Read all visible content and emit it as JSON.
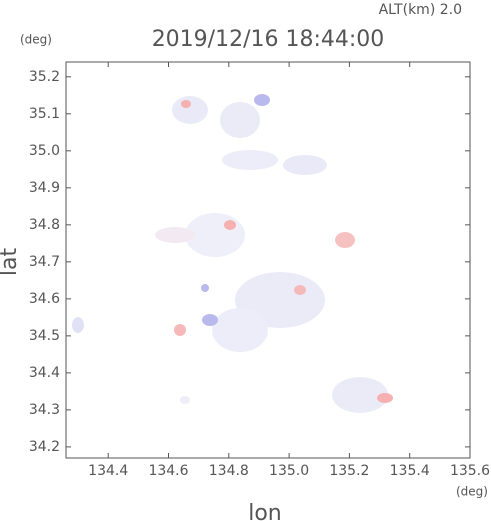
{
  "chart_data": {
    "type": "radar-map",
    "altitude_label": "ALT(km) 2.0",
    "title": "2019/12/16 18:44:00",
    "y_unit": "(deg)",
    "x_unit": "(deg)",
    "xlabel": "lon",
    "ylabel": "lat",
    "xlim": [
      134.26,
      135.6
    ],
    "ylim": [
      34.17,
      35.24
    ],
    "xticks": [
      134.4,
      134.6,
      134.8,
      {
        "value": 135.0,
        "label": "135.0"
      },
      135.2,
      135.4,
      135.6
    ],
    "yticks": [
      34.2,
      34.3,
      34.4,
      34.5,
      34.6,
      34.7,
      34.8,
      34.9,
      {
        "value": 35.0,
        "label": "35.0"
      },
      35.1,
      35.2
    ]
  }
}
